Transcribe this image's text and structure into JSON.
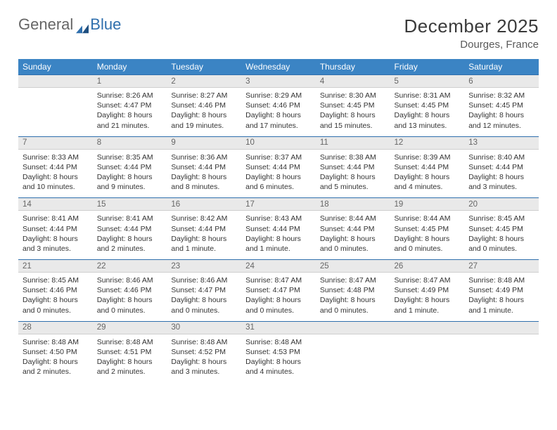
{
  "logo": {
    "text1": "General",
    "text2": "Blue"
  },
  "title": {
    "month": "December 2025",
    "location": "Dourges, France"
  },
  "colors": {
    "header_bg": "#3b84c4",
    "header_text": "#ffffff",
    "daterow_bg": "#e9e9e9",
    "daterow_border_top": "#2f6fad",
    "body_text": "#333333"
  },
  "day_headers": [
    "Sunday",
    "Monday",
    "Tuesday",
    "Wednesday",
    "Thursday",
    "Friday",
    "Saturday"
  ],
  "weeks": [
    {
      "dates": [
        "",
        "1",
        "2",
        "3",
        "4",
        "5",
        "6"
      ],
      "cells": [
        null,
        {
          "sunrise": "Sunrise: 8:26 AM",
          "sunset": "Sunset: 4:47 PM",
          "day1": "Daylight: 8 hours",
          "day2": "and 21 minutes."
        },
        {
          "sunrise": "Sunrise: 8:27 AM",
          "sunset": "Sunset: 4:46 PM",
          "day1": "Daylight: 8 hours",
          "day2": "and 19 minutes."
        },
        {
          "sunrise": "Sunrise: 8:29 AM",
          "sunset": "Sunset: 4:46 PM",
          "day1": "Daylight: 8 hours",
          "day2": "and 17 minutes."
        },
        {
          "sunrise": "Sunrise: 8:30 AM",
          "sunset": "Sunset: 4:45 PM",
          "day1": "Daylight: 8 hours",
          "day2": "and 15 minutes."
        },
        {
          "sunrise": "Sunrise: 8:31 AM",
          "sunset": "Sunset: 4:45 PM",
          "day1": "Daylight: 8 hours",
          "day2": "and 13 minutes."
        },
        {
          "sunrise": "Sunrise: 8:32 AM",
          "sunset": "Sunset: 4:45 PM",
          "day1": "Daylight: 8 hours",
          "day2": "and 12 minutes."
        }
      ]
    },
    {
      "dates": [
        "7",
        "8",
        "9",
        "10",
        "11",
        "12",
        "13"
      ],
      "cells": [
        {
          "sunrise": "Sunrise: 8:33 AM",
          "sunset": "Sunset: 4:44 PM",
          "day1": "Daylight: 8 hours",
          "day2": "and 10 minutes."
        },
        {
          "sunrise": "Sunrise: 8:35 AM",
          "sunset": "Sunset: 4:44 PM",
          "day1": "Daylight: 8 hours",
          "day2": "and 9 minutes."
        },
        {
          "sunrise": "Sunrise: 8:36 AM",
          "sunset": "Sunset: 4:44 PM",
          "day1": "Daylight: 8 hours",
          "day2": "and 8 minutes."
        },
        {
          "sunrise": "Sunrise: 8:37 AM",
          "sunset": "Sunset: 4:44 PM",
          "day1": "Daylight: 8 hours",
          "day2": "and 6 minutes."
        },
        {
          "sunrise": "Sunrise: 8:38 AM",
          "sunset": "Sunset: 4:44 PM",
          "day1": "Daylight: 8 hours",
          "day2": "and 5 minutes."
        },
        {
          "sunrise": "Sunrise: 8:39 AM",
          "sunset": "Sunset: 4:44 PM",
          "day1": "Daylight: 8 hours",
          "day2": "and 4 minutes."
        },
        {
          "sunrise": "Sunrise: 8:40 AM",
          "sunset": "Sunset: 4:44 PM",
          "day1": "Daylight: 8 hours",
          "day2": "and 3 minutes."
        }
      ]
    },
    {
      "dates": [
        "14",
        "15",
        "16",
        "17",
        "18",
        "19",
        "20"
      ],
      "cells": [
        {
          "sunrise": "Sunrise: 8:41 AM",
          "sunset": "Sunset: 4:44 PM",
          "day1": "Daylight: 8 hours",
          "day2": "and 3 minutes."
        },
        {
          "sunrise": "Sunrise: 8:41 AM",
          "sunset": "Sunset: 4:44 PM",
          "day1": "Daylight: 8 hours",
          "day2": "and 2 minutes."
        },
        {
          "sunrise": "Sunrise: 8:42 AM",
          "sunset": "Sunset: 4:44 PM",
          "day1": "Daylight: 8 hours",
          "day2": "and 1 minute."
        },
        {
          "sunrise": "Sunrise: 8:43 AM",
          "sunset": "Sunset: 4:44 PM",
          "day1": "Daylight: 8 hours",
          "day2": "and 1 minute."
        },
        {
          "sunrise": "Sunrise: 8:44 AM",
          "sunset": "Sunset: 4:44 PM",
          "day1": "Daylight: 8 hours",
          "day2": "and 0 minutes."
        },
        {
          "sunrise": "Sunrise: 8:44 AM",
          "sunset": "Sunset: 4:45 PM",
          "day1": "Daylight: 8 hours",
          "day2": "and 0 minutes."
        },
        {
          "sunrise": "Sunrise: 8:45 AM",
          "sunset": "Sunset: 4:45 PM",
          "day1": "Daylight: 8 hours",
          "day2": "and 0 minutes."
        }
      ]
    },
    {
      "dates": [
        "21",
        "22",
        "23",
        "24",
        "25",
        "26",
        "27"
      ],
      "cells": [
        {
          "sunrise": "Sunrise: 8:45 AM",
          "sunset": "Sunset: 4:46 PM",
          "day1": "Daylight: 8 hours",
          "day2": "and 0 minutes."
        },
        {
          "sunrise": "Sunrise: 8:46 AM",
          "sunset": "Sunset: 4:46 PM",
          "day1": "Daylight: 8 hours",
          "day2": "and 0 minutes."
        },
        {
          "sunrise": "Sunrise: 8:46 AM",
          "sunset": "Sunset: 4:47 PM",
          "day1": "Daylight: 8 hours",
          "day2": "and 0 minutes."
        },
        {
          "sunrise": "Sunrise: 8:47 AM",
          "sunset": "Sunset: 4:47 PM",
          "day1": "Daylight: 8 hours",
          "day2": "and 0 minutes."
        },
        {
          "sunrise": "Sunrise: 8:47 AM",
          "sunset": "Sunset: 4:48 PM",
          "day1": "Daylight: 8 hours",
          "day2": "and 0 minutes."
        },
        {
          "sunrise": "Sunrise: 8:47 AM",
          "sunset": "Sunset: 4:49 PM",
          "day1": "Daylight: 8 hours",
          "day2": "and 1 minute."
        },
        {
          "sunrise": "Sunrise: 8:48 AM",
          "sunset": "Sunset: 4:49 PM",
          "day1": "Daylight: 8 hours",
          "day2": "and 1 minute."
        }
      ]
    },
    {
      "dates": [
        "28",
        "29",
        "30",
        "31",
        "",
        "",
        ""
      ],
      "cells": [
        {
          "sunrise": "Sunrise: 8:48 AM",
          "sunset": "Sunset: 4:50 PM",
          "day1": "Daylight: 8 hours",
          "day2": "and 2 minutes."
        },
        {
          "sunrise": "Sunrise: 8:48 AM",
          "sunset": "Sunset: 4:51 PM",
          "day1": "Daylight: 8 hours",
          "day2": "and 2 minutes."
        },
        {
          "sunrise": "Sunrise: 8:48 AM",
          "sunset": "Sunset: 4:52 PM",
          "day1": "Daylight: 8 hours",
          "day2": "and 3 minutes."
        },
        {
          "sunrise": "Sunrise: 8:48 AM",
          "sunset": "Sunset: 4:53 PM",
          "day1": "Daylight: 8 hours",
          "day2": "and 4 minutes."
        },
        null,
        null,
        null
      ]
    }
  ]
}
